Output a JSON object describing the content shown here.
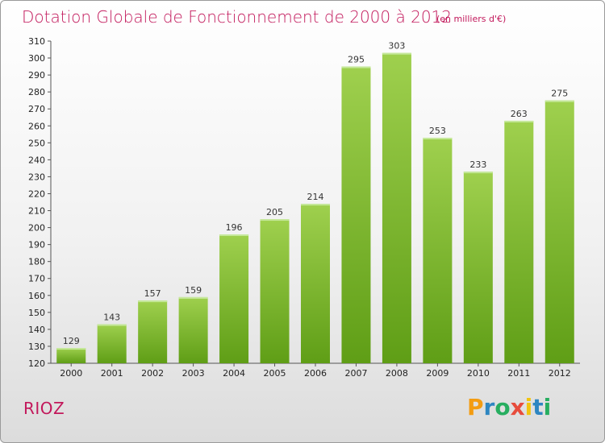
{
  "title": "Dotation Globale de Fonctionnement de 2000 à 2012",
  "unit_note": "(en milliers d'€)",
  "commune": "RIOZ",
  "logo": {
    "letters": [
      "P",
      "r",
      "o",
      "x",
      "i",
      "t",
      "i"
    ],
    "colors": [
      "#f39c12",
      "#2e86c1",
      "#27ae60",
      "#e74c3c",
      "#f1c40f",
      "#2e86c1",
      "#27ae60"
    ]
  },
  "colors": {
    "bar_light": "#9fd04e",
    "bar_dark": "#5f9e16",
    "title": "#c2185b"
  },
  "chart_data": {
    "type": "bar",
    "title": "Dotation Globale de Fonctionnement de 2000 à 2012",
    "categories": [
      "2000",
      "2001",
      "2002",
      "2003",
      "2004",
      "2005",
      "2006",
      "2007",
      "2008",
      "2009",
      "2010",
      "2011",
      "2012"
    ],
    "values": [
      129,
      143,
      157,
      159,
      196,
      205,
      214,
      295,
      303,
      253,
      233,
      263,
      275
    ],
    "ylim": [
      120,
      310
    ],
    "yticks": [
      120,
      130,
      140,
      150,
      160,
      170,
      180,
      190,
      200,
      210,
      220,
      230,
      240,
      250,
      260,
      270,
      280,
      290,
      300,
      310
    ],
    "grid": false
  }
}
